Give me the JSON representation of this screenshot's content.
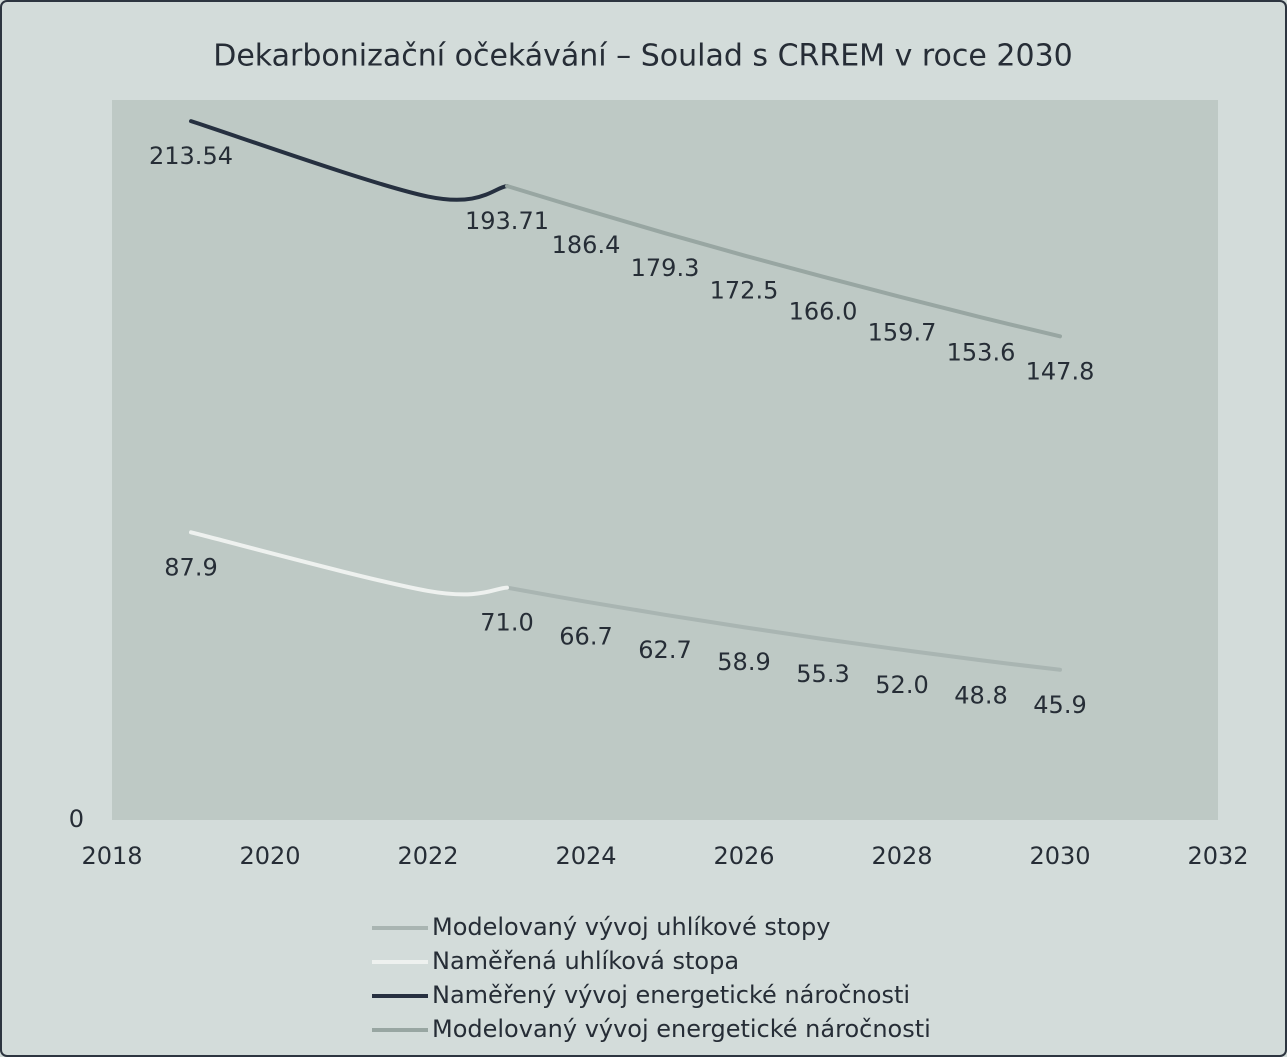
{
  "chart_data": {
    "type": "line",
    "title": "Dekarbonizační očekávání – Soulad s CRREM v roce 2030",
    "xlim": [
      2018,
      2032
    ],
    "xticks": [
      2018,
      2020,
      2022,
      2024,
      2026,
      2028,
      2030,
      2032
    ],
    "ylim": [
      0,
      220
    ],
    "yticks": [
      0
    ],
    "series": [
      {
        "name": "Modelovaný vývoj uhlíkové stopy",
        "color": "#a9b5b2",
        "x": [
          2023,
          2024,
          2025,
          2026,
          2027,
          2028,
          2029,
          2030
        ],
        "values": [
          71.0,
          66.7,
          62.7,
          58.9,
          55.3,
          52.0,
          48.8,
          45.9
        ],
        "value_labels": [
          null,
          "66.7",
          "62.7",
          "58.9",
          "55.3",
          "52.0",
          "48.8",
          "45.9"
        ]
      },
      {
        "name": "Naměřená uhlíková stopa",
        "color": "#eef1ef",
        "x": [
          2019,
          2022,
          2023
        ],
        "values": [
          87.9,
          70.0,
          71.0
        ],
        "value_labels": [
          "87.9",
          null,
          "71.0"
        ]
      },
      {
        "name": "Naměřený vývoj energetické náročnosti",
        "color": "#263040",
        "x": [
          2019,
          2022,
          2023
        ],
        "values": [
          213.54,
          190.5,
          193.71
        ],
        "value_labels": [
          "213.54",
          null,
          "193.71"
        ]
      },
      {
        "name": "Modelovaný vývoj energetické náročnosti",
        "color": "#98a6a2",
        "x": [
          2023,
          2024,
          2025,
          2026,
          2027,
          2028,
          2029,
          2030
        ],
        "values": [
          193.71,
          186.4,
          179.3,
          172.5,
          166.0,
          159.7,
          153.6,
          147.8
        ],
        "value_labels": [
          null,
          "186.4",
          "179.3",
          "172.5",
          "166.0",
          "159.7",
          "153.6",
          "147.8"
        ]
      }
    ]
  }
}
